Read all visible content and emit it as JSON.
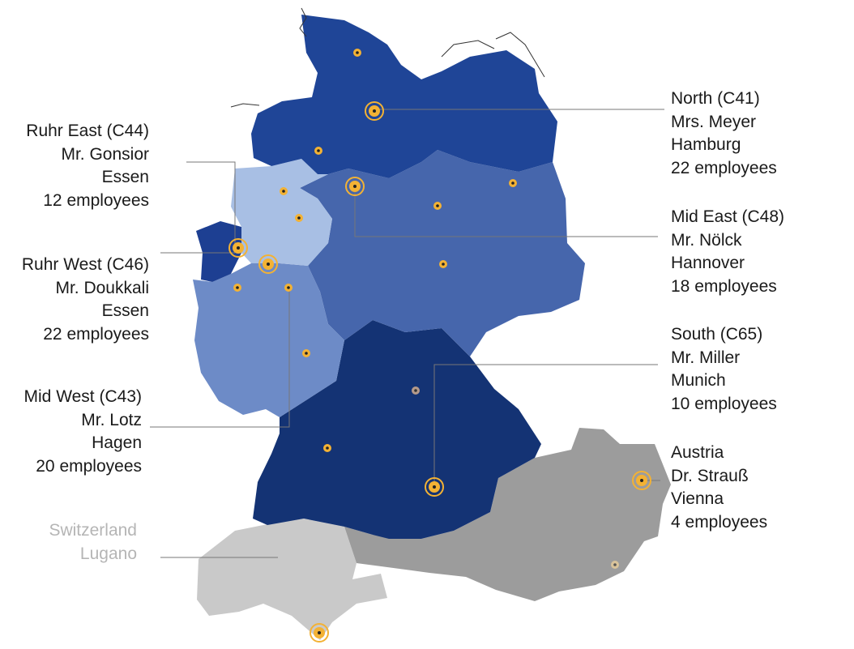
{
  "colors": {
    "north": "#1f4597",
    "mid_east": "#4666ac",
    "ruhr_east": "#a8bfe4",
    "ruhr_west": "#1d3f92",
    "mid_west": "#6d8bc7",
    "south": "#143374",
    "austria": "#9c9c9c",
    "switzerland": "#c9c9c9",
    "marker": "#f3b234",
    "leader": "#777777"
  },
  "regions": {
    "north": {
      "name": "North (C41)",
      "contact": "Mrs. Meyer",
      "city": "Hamburg",
      "staff": "22 employees"
    },
    "mid_east": {
      "name": "Mid East (C48)",
      "contact": "Mr. Nölck",
      "city": "Hannover",
      "staff": "18 employees"
    },
    "south": {
      "name": "South (C65)",
      "contact": "Mr. Miller",
      "city": "Munich",
      "staff": "10 employees"
    },
    "austria": {
      "name": "Austria",
      "contact": "Dr. Strauß",
      "city": "Vienna",
      "staff": "4 employees"
    },
    "ruhr_east": {
      "name": "Ruhr East (C44)",
      "contact": "Mr. Gonsior",
      "city": "Essen",
      "staff": "12 employees"
    },
    "ruhr_west": {
      "name": "Ruhr West (C46)",
      "contact": "Mr. Doukkali",
      "city": "Essen",
      "staff": "22 employees"
    },
    "mid_west": {
      "name": "Mid West (C43)",
      "contact": "Mr. Lotz",
      "city": "Hagen",
      "staff": "20 employees"
    },
    "switzerland": {
      "name": "Switzerland",
      "city": "Lugano"
    }
  }
}
